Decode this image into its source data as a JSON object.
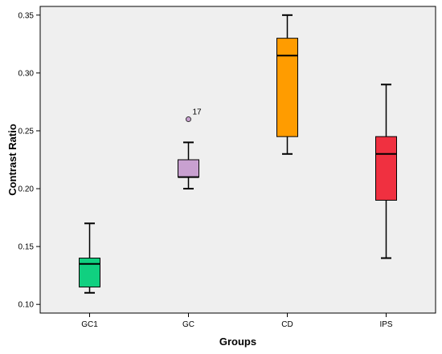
{
  "chart_data": {
    "type": "boxplot",
    "title": "",
    "xlabel": "Groups",
    "ylabel": "Contrast Ratio",
    "ylim": [
      0.0925,
      0.3575
    ],
    "yticks": [
      0.1,
      0.15,
      0.2,
      0.25,
      0.3,
      0.35
    ],
    "ytick_labels": [
      "0.10",
      "0.15",
      "0.20",
      "0.25",
      "0.30",
      "0.35"
    ],
    "grid": false,
    "plot_background": "#efefef",
    "categories": [
      "GC1",
      "GC",
      "CD",
      "IPS"
    ],
    "boxes": [
      {
        "category": "GC1",
        "whisker_low": 0.11,
        "q1": 0.115,
        "median": 0.135,
        "q3": 0.14,
        "whisker_high": 0.17,
        "color": "#10d080",
        "outliers": []
      },
      {
        "category": "GC",
        "whisker_low": 0.2,
        "q1": 0.21,
        "median": 0.21,
        "q3": 0.225,
        "whisker_high": 0.24,
        "color": "#c8a0d0",
        "outliers": [
          {
            "value": 0.26,
            "label": "17"
          }
        ]
      },
      {
        "category": "CD",
        "whisker_low": 0.23,
        "q1": 0.245,
        "median": 0.315,
        "q3": 0.33,
        "whisker_high": 0.35,
        "color": "#ff9c00",
        "outliers": []
      },
      {
        "category": "IPS",
        "whisker_low": 0.14,
        "q1": 0.19,
        "median": 0.23,
        "q3": 0.245,
        "whisker_high": 0.29,
        "color": "#f03040",
        "outliers": []
      }
    ]
  }
}
